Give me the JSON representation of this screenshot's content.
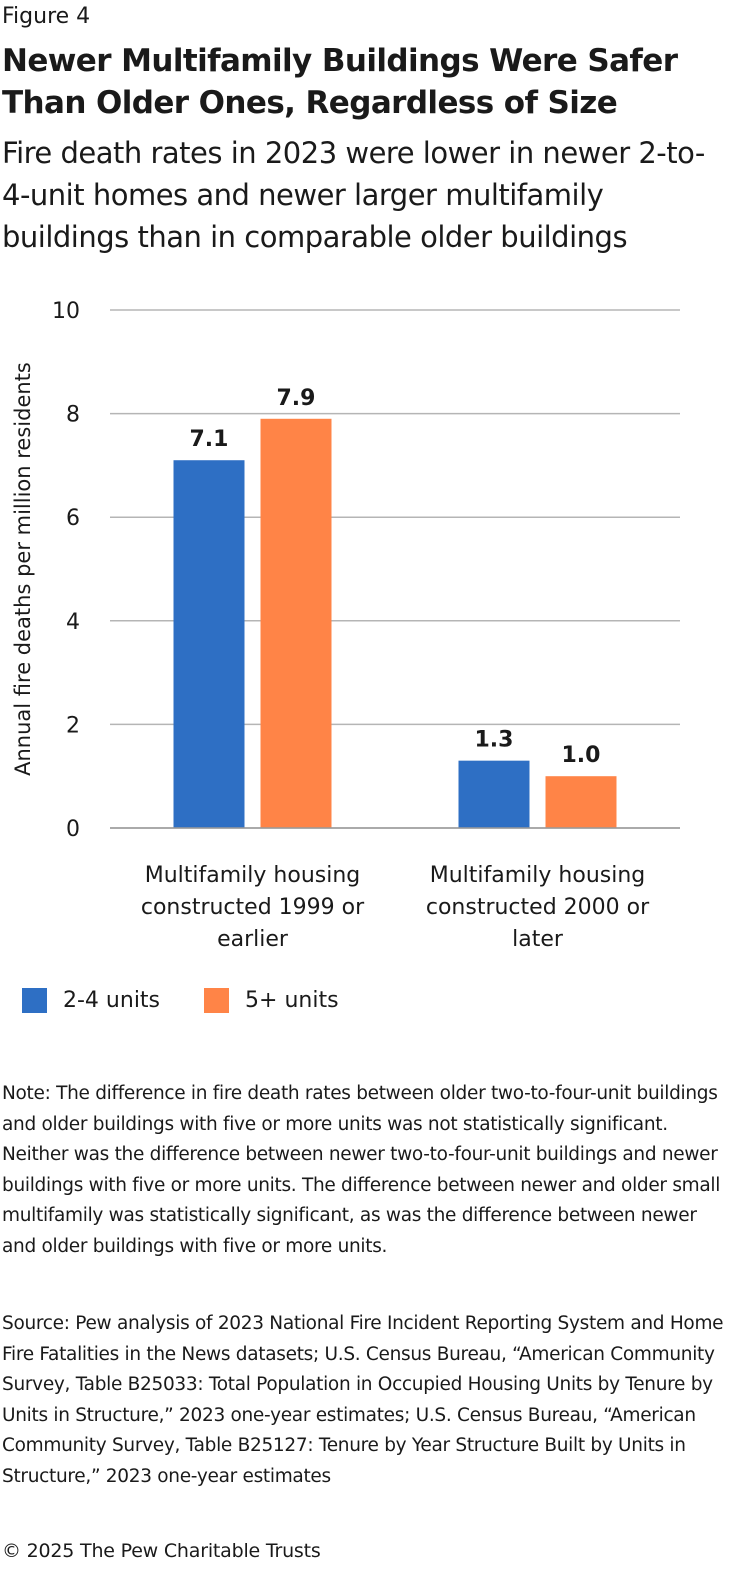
{
  "figure_label": "Figure 4",
  "title": "Newer Multifamily Buildings Were Safer Than Older Ones, Regardless of Size",
  "subtitle": "Fire death rates in 2023 were lower in newer 2-to-4-unit homes and newer larger multifamily buildings than in comparable older buildings",
  "chart_data": {
    "type": "bar",
    "ylabel": "Annual fire deaths per million residents",
    "xlabel": "",
    "ylim": [
      0,
      10
    ],
    "yticks": [
      0,
      2,
      4,
      6,
      8,
      10
    ],
    "grid": true,
    "legend_position": "bottom-left",
    "categories": [
      [
        "Multifamily housing",
        "constructed 1999 or",
        "earlier"
      ],
      [
        "Multifamily housing",
        "constructed 2000 or",
        "later"
      ]
    ],
    "series": [
      {
        "name": "2-4 units",
        "color": "#2e6fc4",
        "values": [
          7.1,
          1.3
        ],
        "labels": [
          "7.1",
          "1.3"
        ]
      },
      {
        "name": "5+ units",
        "color": "#ff8447",
        "values": [
          7.9,
          1.0
        ],
        "labels": [
          "7.9",
          "1.0"
        ]
      }
    ]
  },
  "note": "Note: The difference in fire death rates between older two-to-four-unit buildings and older buildings with five or more units was not statistically significant. Neither was the difference between newer two-to-four-unit buildings and newer buildings with five or more units. The difference between newer and older small multifamily was statistically significant, as was the difference between newer and older buildings with five or more units.",
  "source": "Source: Pew analysis of 2023 National Fire Incident Reporting System and Home Fire Fatalities in the News datasets; U.S. Census Bureau, “American Community Survey, Table B25033: Total Population in Occupied Housing Units by Tenure by Units in Structure,” 2023 one-year estimates; U.S. Census Bureau, “American Community Survey, Table B25127: Tenure by Year Structure Built by Units in Structure,” 2023 one-year estimates",
  "copyright": "© 2025 The Pew Charitable Trusts"
}
